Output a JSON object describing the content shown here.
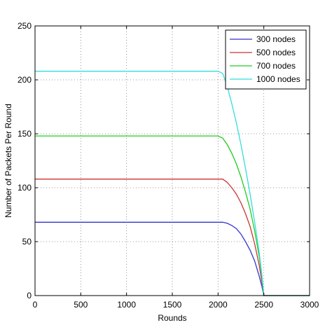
{
  "chart_data": {
    "type": "line",
    "title": "",
    "xlabel": "Rounds",
    "ylabel": "Number of Packets Per Round",
    "xlim": [
      0,
      3000
    ],
    "ylim": [
      0,
      250
    ],
    "xticks": [
      "0",
      "500",
      "1000",
      "1500",
      "2000",
      "2500",
      "3000"
    ],
    "yticks": [
      "0",
      "50",
      "100",
      "150",
      "200",
      "250"
    ],
    "grid": true,
    "legend_position": "top-right",
    "series": [
      {
        "name": "300 nodes",
        "color": "#3333cc",
        "x": [
          0,
          2000,
          2050,
          2100,
          2150,
          2200,
          2250,
          2300,
          2350,
          2400,
          2450,
          2480,
          2500,
          3000
        ],
        "y": [
          68,
          68,
          68,
          67,
          65,
          62,
          57,
          50,
          42,
          32,
          18,
          8,
          0,
          0
        ]
      },
      {
        "name": "500 nodes",
        "color": "#cc3333",
        "x": [
          0,
          2000,
          2050,
          2100,
          2150,
          2200,
          2250,
          2300,
          2350,
          2400,
          2450,
          2480,
          2500,
          3000
        ],
        "y": [
          108,
          108,
          108,
          105,
          100,
          94,
          86,
          76,
          64,
          48,
          28,
          12,
          0,
          0
        ]
      },
      {
        "name": "700 nodes",
        "color": "#22cc22",
        "x": [
          0,
          2000,
          2050,
          2100,
          2150,
          2200,
          2250,
          2300,
          2350,
          2400,
          2450,
          2480,
          2500,
          3000
        ],
        "y": [
          148,
          148,
          146,
          140,
          132,
          122,
          110,
          96,
          80,
          60,
          36,
          16,
          0,
          0
        ]
      },
      {
        "name": "1000 nodes",
        "color": "#33dddd",
        "x": [
          0,
          2000,
          2050,
          2100,
          2150,
          2200,
          2250,
          2300,
          2350,
          2400,
          2450,
          2480,
          2500,
          3000
        ],
        "y": [
          208,
          208,
          206,
          194,
          178,
          160,
          140,
          118,
          94,
          68,
          40,
          18,
          0,
          0
        ]
      }
    ]
  }
}
